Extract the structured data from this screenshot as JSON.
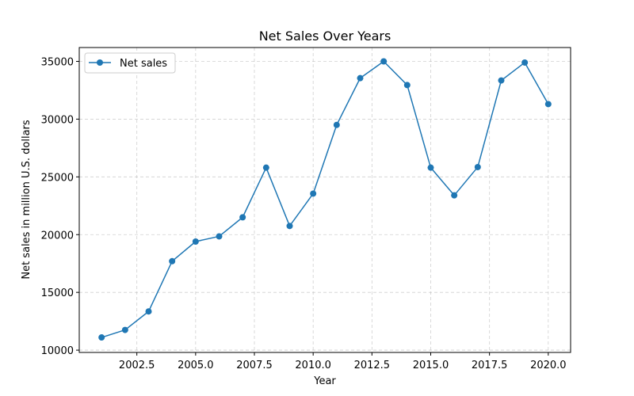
{
  "chart_data": {
    "type": "line",
    "title": "Net Sales Over Years",
    "xlabel": "Year",
    "ylabel": "Net sales in million U.S. dollars",
    "x": [
      2001,
      2002,
      2003,
      2004,
      2005,
      2006,
      2007,
      2008,
      2009,
      2010,
      2011,
      2012,
      2013,
      2014,
      2015,
      2016,
      2017,
      2018,
      2019,
      2020
    ],
    "series": [
      {
        "name": "Net sales",
        "color": "#1f77b4",
        "marker": "circle",
        "values": [
          11100,
          11750,
          13350,
          17700,
          19400,
          19850,
          21500,
          25800,
          20750,
          23550,
          29500,
          33550,
          35000,
          32950,
          25800,
          23400,
          25850,
          33350,
          34900,
          31300
        ]
      }
    ],
    "xlim": [
      2000.05,
      2020.95
    ],
    "ylim": [
      9800,
      36200
    ],
    "xticks": [
      2002.5,
      2005.0,
      2007.5,
      2010.0,
      2012.5,
      2015.0,
      2017.5,
      2020.0
    ],
    "xtick_labels": [
      "2002.5",
      "2005.0",
      "2007.5",
      "2010.0",
      "2012.5",
      "2015.0",
      "2017.5",
      "2020.0"
    ],
    "yticks": [
      10000,
      15000,
      20000,
      25000,
      30000,
      35000
    ],
    "ytick_labels": [
      "10000",
      "15000",
      "20000",
      "25000",
      "30000",
      "35000"
    ],
    "grid": true,
    "legend_position": "upper-left"
  }
}
